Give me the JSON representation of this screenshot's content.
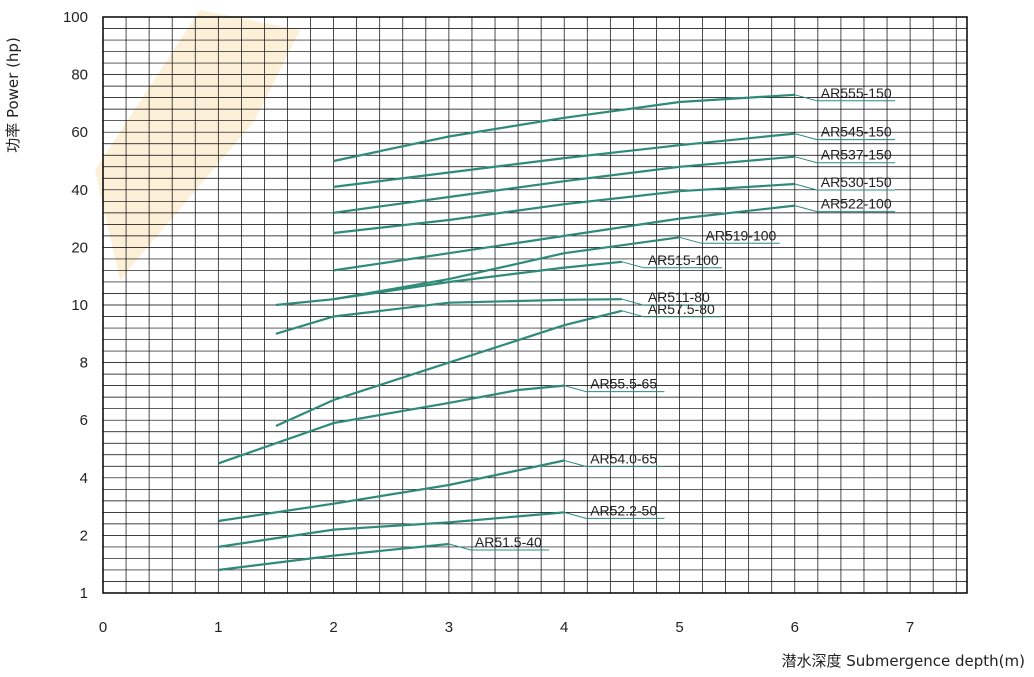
{
  "chart_data": {
    "type": "line",
    "title": "",
    "xlabel": "潜水深度 Submergence depth(m)",
    "ylabel": "功率 Power (hp)",
    "xlim": [
      0,
      7.5
    ],
    "y_ticks": [
      1,
      2,
      4,
      6,
      8,
      10,
      20,
      40,
      60,
      80,
      100
    ],
    "x_ticks": [
      0,
      1,
      2,
      3,
      4,
      5,
      6,
      7
    ],
    "grid": true,
    "y_scale": "nonuniform (tick labels equally spaced)",
    "line_color": "#2e8b7a",
    "series": [
      {
        "name": "AR555-150",
        "x": [
          2,
          3,
          4,
          5,
          6
        ],
        "y": [
          50,
          58.5,
          65,
          70.5,
          73
        ]
      },
      {
        "name": "AR545-150",
        "x": [
          2,
          3,
          4,
          5,
          6
        ],
        "y": [
          41,
          46,
          51,
          55.5,
          59.5
        ]
      },
      {
        "name": "AR537-150",
        "x": [
          2,
          3,
          4,
          5,
          6
        ],
        "y": [
          32,
          37.5,
          43,
          48,
          51.5
        ]
      },
      {
        "name": "AR530-150",
        "x": [
          2,
          3,
          4,
          5,
          6
        ],
        "y": [
          25,
          29.5,
          35,
          39.5,
          42
        ]
      },
      {
        "name": "AR522-100",
        "x": [
          2,
          3,
          4,
          5,
          6
        ],
        "y": [
          16,
          19,
          24,
          30,
          34.5
        ]
      },
      {
        "name": "AR519-100",
        "x": [
          2,
          3,
          4,
          5
        ],
        "y": [
          11,
          14.5,
          19,
          23.5
        ]
      },
      {
        "name": "AR515-100",
        "x": [
          1.5,
          2,
          3,
          4,
          4.5
        ],
        "y": [
          10,
          11,
          14,
          16.5,
          17.5
        ]
      },
      {
        "name": "AR511-80",
        "x": [
          1.5,
          2,
          3,
          4,
          4.5
        ],
        "y": [
          9,
          9.6,
          10.4,
          10.9,
          11
        ]
      },
      {
        "name": "AR57.5-80",
        "x": [
          1.5,
          2,
          3,
          4,
          4.5
        ],
        "y": [
          5.8,
          6.7,
          8,
          9.3,
          9.8
        ]
      },
      {
        "name": "AR55.5-65",
        "x": [
          1,
          2,
          3,
          3.6,
          4
        ],
        "y": [
          4.5,
          5.9,
          6.6,
          7.05,
          7.2
        ]
      },
      {
        "name": "AR54.0-65",
        "x": [
          1,
          2,
          3,
          4
        ],
        "y": [
          2.5,
          3.1,
          3.75,
          4.6
        ]
      },
      {
        "name": "AR52.2-50",
        "x": [
          1,
          2,
          3,
          4
        ],
        "y": [
          1.8,
          2.2,
          2.45,
          2.8
        ]
      },
      {
        "name": "AR51.5-40",
        "x": [
          1,
          2,
          3
        ],
        "y": [
          1.4,
          1.65,
          1.85
        ]
      }
    ]
  }
}
